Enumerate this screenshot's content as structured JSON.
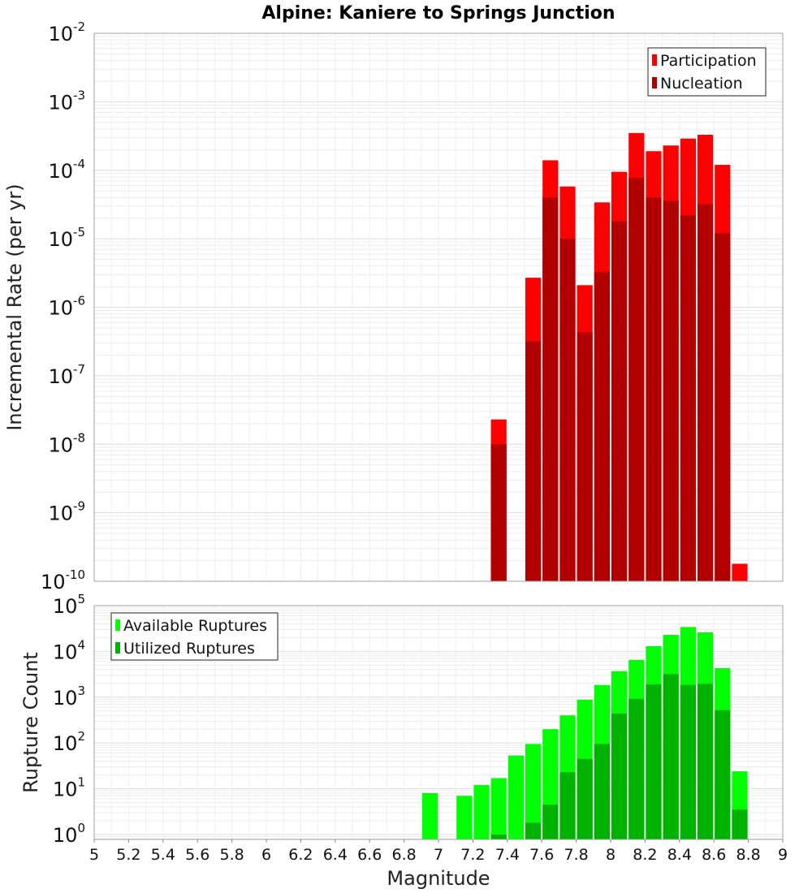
{
  "chart_data": [
    {
      "type": "bar",
      "title": "Alpine: Kaniere to Springs Junction",
      "xlabel": "",
      "ylabel": "Incremental Rate (per yr)",
      "yscale": "log",
      "ylim": [
        1e-10,
        0.01
      ],
      "xlim": [
        5,
        9
      ],
      "bar_width": 0.1,
      "y_tick_exponents": [
        "-2",
        "-3",
        "-4",
        "-5",
        "-6",
        "-7",
        "-8",
        "-9",
        "-10"
      ],
      "legend_position": "top-right",
      "series": [
        {
          "name": "Participation",
          "color": "#ff0000",
          "x": [
            7.35,
            7.55,
            7.65,
            7.75,
            7.85,
            7.95,
            8.05,
            8.15,
            8.25,
            8.35,
            8.45,
            8.55,
            8.65,
            8.75
          ],
          "values": [
            2.3e-08,
            2.7e-06,
            0.00014,
            5.8e-05,
            2.1e-06,
            3.4e-05,
            9.5e-05,
            0.00035,
            0.00019,
            0.00023,
            0.00029,
            0.00033,
            0.00012,
            1.8e-10
          ]
        },
        {
          "name": "Nucleation",
          "color": "#b20000",
          "x": [
            7.35,
            7.55,
            7.65,
            7.75,
            7.85,
            7.95,
            8.05,
            8.15,
            8.25,
            8.35,
            8.45,
            8.55,
            8.65
          ],
          "values": [
            1e-08,
            3.2e-07,
            4e-05,
            1e-05,
            4.3e-07,
            3.3e-06,
            1.8e-05,
            7.8e-05,
            4e-05,
            3.6e-05,
            2.2e-05,
            3.2e-05,
            1.2e-05
          ]
        }
      ]
    },
    {
      "type": "bar",
      "title": "",
      "xlabel": "Magnitude",
      "ylabel": "Rupture Count",
      "yscale": "log",
      "ylim": [
        0.78,
        100000.0
      ],
      "xlim": [
        5,
        9
      ],
      "bar_width": 0.1,
      "y_tick_exponents": [
        "5",
        "4",
        "3",
        "2",
        "1",
        "0"
      ],
      "x_ticks": [
        "5",
        "5.2",
        "5.4",
        "5.6",
        "5.8",
        "6",
        "6.2",
        "6.4",
        "6.6",
        "6.8",
        "7",
        "7.2",
        "7.4",
        "7.6",
        "7.8",
        "8",
        "8.2",
        "8.4",
        "8.6",
        "8.8",
        "9"
      ],
      "legend_position": "top-left",
      "series": [
        {
          "name": "Available Ruptures",
          "color": "#00ff00",
          "x": [
            6.95,
            7.15,
            7.25,
            7.35,
            7.45,
            7.55,
            7.65,
            7.75,
            7.85,
            7.95,
            8.05,
            8.15,
            8.25,
            8.35,
            8.45,
            8.55,
            8.65,
            8.75
          ],
          "values": [
            8,
            7,
            12,
            17,
            53,
            95,
            200,
            400,
            880,
            1850,
            3700,
            6500,
            13000,
            23000,
            34000,
            26000,
            4300,
            24
          ]
        },
        {
          "name": "Utilized Ruptures",
          "color": "#00b200",
          "x": [
            7.35,
            7.55,
            7.65,
            7.75,
            7.85,
            7.95,
            8.05,
            8.15,
            8.25,
            8.35,
            8.45,
            8.55,
            8.65,
            8.75
          ],
          "values": [
            1,
            1.8,
            4.5,
            23,
            45,
            95,
            440,
            920,
            1900,
            3200,
            1850,
            1950,
            520,
            3.5
          ]
        }
      ]
    }
  ]
}
